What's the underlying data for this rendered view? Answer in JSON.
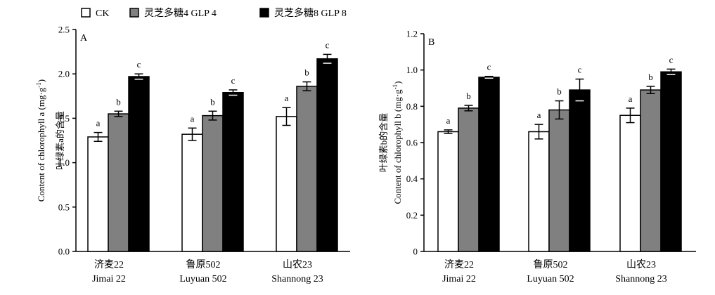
{
  "legend": [
    {
      "label": "CK",
      "color": "#ffffff"
    },
    {
      "label": "灵芝多糖4 GLP 4",
      "color": "#808080"
    },
    {
      "label": "灵芝多糖8 GLP 8",
      "color": "#000000"
    }
  ],
  "chart_data": [
    {
      "type": "bar",
      "panel": "A",
      "ylabel_cn": "叶绿素a的含量",
      "ylabel_en": "Content of chlorophyll a (mg·g",
      "ylabel_sup": "-1",
      "ylabel_close": ")",
      "ylim": [
        0,
        2.5
      ],
      "yticks": [
        "0.0",
        "0.5",
        "1.0",
        "1.5",
        "2.0",
        "2.5"
      ],
      "categories": [
        {
          "cn": "济麦22",
          "en": "Jimai 22"
        },
        {
          "cn": "鲁原502",
          "en": "Luyuan 502"
        },
        {
          "cn": "山农23",
          "en": "Shannong 23"
        }
      ],
      "series": [
        {
          "values": [
            1.29,
            1.32,
            1.52
          ],
          "errors": [
            0.05,
            0.07,
            0.1
          ],
          "letters": [
            "a",
            "a",
            "a"
          ]
        },
        {
          "values": [
            1.55,
            1.53,
            1.86
          ],
          "errors": [
            0.03,
            0.05,
            0.05
          ],
          "letters": [
            "b",
            "b",
            "b"
          ]
        },
        {
          "values": [
            1.97,
            1.79,
            2.17
          ],
          "errors": [
            0.03,
            0.03,
            0.05
          ],
          "letters": [
            "c",
            "c",
            "c"
          ]
        }
      ]
    },
    {
      "type": "bar",
      "panel": "B",
      "ylabel_cn": "叶绿素b的含量",
      "ylabel_en": "Content of chlorophyll b (mg·g",
      "ylabel_sup": "-1",
      "ylabel_close": ")",
      "ylim": [
        0,
        1.2
      ],
      "yticks": [
        "0",
        "0.2",
        "0.4",
        "0.6",
        "0.8",
        "1.0",
        "1.2"
      ],
      "categories": [
        {
          "cn": "济麦22",
          "en": "Jimai 22"
        },
        {
          "cn": "鲁原502",
          "en": "Luyuan 502"
        },
        {
          "cn": "山农23",
          "en": "Shannong 23"
        }
      ],
      "series": [
        {
          "values": [
            0.66,
            0.66,
            0.75
          ],
          "errors": [
            0.01,
            0.04,
            0.04
          ],
          "letters": [
            "a",
            "a",
            "a"
          ]
        },
        {
          "values": [
            0.79,
            0.78,
            0.89
          ],
          "errors": [
            0.015,
            0.05,
            0.02
          ],
          "letters": [
            "b",
            "b",
            "b"
          ]
        },
        {
          "values": [
            0.96,
            0.89,
            0.99
          ],
          "errors": [
            0.005,
            0.06,
            0.015
          ],
          "letters": [
            "c",
            "c",
            "c"
          ]
        }
      ]
    }
  ]
}
